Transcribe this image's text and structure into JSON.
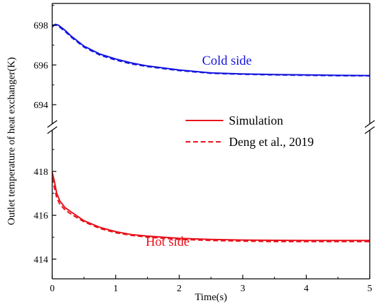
{
  "chart_data": {
    "type": "line",
    "xlabel": "Time(s)",
    "ylabel": "Outlet temperature of heat exchanger(K)",
    "xlim": [
      0,
      5
    ],
    "x_ticks": [
      "0",
      "1",
      "2",
      "3",
      "4",
      "5"
    ],
    "y_axis_break": true,
    "upper_panel": {
      "ylim": [
        693.1,
        699.1
      ],
      "y_ticks": [
        "694",
        "696",
        "698"
      ]
    },
    "lower_panel": {
      "ylim": [
        413.1,
        419.6
      ],
      "y_ticks": [
        "414",
        "416",
        "418"
      ]
    },
    "legend": {
      "position": "center-right",
      "entries": [
        {
          "label": "Simulation",
          "style": "solid",
          "color": "#e8101a"
        },
        {
          "label": "Deng et al., 2019",
          "style": "dashed",
          "color": "#e8101a"
        }
      ]
    },
    "annotations": [
      {
        "text": "Cold side",
        "color": "#1414e0"
      },
      {
        "text": "Hot side",
        "color": "#e8101a"
      }
    ],
    "series": [
      {
        "panel": "upper",
        "style": "solid",
        "color": "#1414e0",
        "x": [
          0,
          0.05,
          0.1,
          0.2,
          0.3,
          0.5,
          0.75,
          1,
          1.25,
          1.5,
          2,
          2.5,
          3,
          3.5,
          4,
          4.5,
          5
        ],
        "y": [
          697.92,
          698.05,
          698.0,
          697.75,
          697.45,
          696.95,
          696.55,
          696.3,
          696.1,
          695.95,
          695.75,
          695.6,
          695.55,
          695.52,
          695.5,
          695.48,
          695.47
        ]
      },
      {
        "panel": "upper",
        "style": "dashed",
        "color": "#1414e0",
        "x": [
          0,
          0.05,
          0.1,
          0.2,
          0.3,
          0.5,
          0.75,
          1,
          1.25,
          1.5,
          2,
          2.5,
          3,
          3.5,
          4,
          4.5,
          5
        ],
        "y": [
          698.0,
          698.02,
          697.95,
          697.7,
          697.4,
          696.9,
          696.5,
          696.25,
          696.05,
          695.92,
          695.72,
          695.58,
          695.53,
          695.5,
          695.48,
          695.46,
          695.45
        ]
      },
      {
        "panel": "lower",
        "style": "solid",
        "color": "#e8101a",
        "x": [
          0,
          0.03,
          0.07,
          0.12,
          0.2,
          0.3,
          0.5,
          0.75,
          1,
          1.25,
          1.5,
          2,
          2.5,
          3,
          3.5,
          4,
          4.5,
          5
        ],
        "y": [
          417.95,
          417.6,
          417.0,
          416.65,
          416.35,
          416.15,
          415.75,
          415.45,
          415.25,
          415.12,
          415.05,
          414.95,
          414.9,
          414.87,
          414.86,
          414.85,
          414.85,
          414.85
        ]
      },
      {
        "panel": "lower",
        "style": "dashed",
        "color": "#e8101a",
        "x": [
          0,
          0.03,
          0.07,
          0.12,
          0.2,
          0.3,
          0.5,
          0.75,
          1,
          1.25,
          1.5,
          2,
          2.5,
          3,
          3.5,
          4,
          4.5,
          5
        ],
        "y": [
          417.7,
          417.3,
          416.8,
          416.5,
          416.25,
          416.05,
          415.7,
          415.4,
          415.2,
          415.08,
          415.0,
          414.9,
          414.85,
          414.82,
          414.8,
          414.8,
          414.8,
          414.8
        ]
      }
    ]
  }
}
